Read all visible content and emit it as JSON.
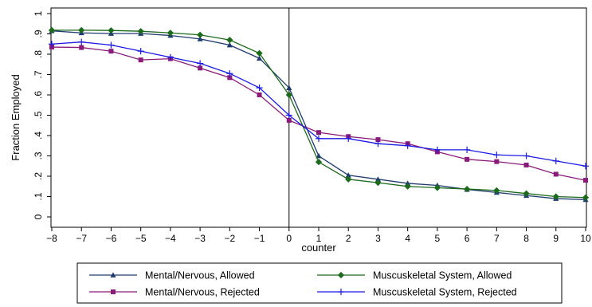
{
  "chart_data": {
    "type": "line",
    "xlabel": "counter",
    "ylabel": "Fraction Employed",
    "xlim": [
      -8,
      10
    ],
    "ylim": [
      0,
      1
    ],
    "x": [
      -8,
      -7,
      -6,
      -5,
      -4,
      -3,
      -2,
      -1,
      0,
      1,
      2,
      3,
      4,
      5,
      6,
      7,
      8,
      9,
      10
    ],
    "x_tick_labels": [
      "−8",
      "−7",
      "−6",
      "−5",
      "−4",
      "−3",
      "−2",
      "−1",
      "0",
      "1",
      "2",
      "3",
      "4",
      "5",
      "6",
      "7",
      "8",
      "9",
      "10"
    ],
    "y_ticks": [
      0,
      0.1,
      0.2,
      0.3,
      0.4,
      0.5,
      0.6,
      0.7,
      0.8,
      0.9,
      1
    ],
    "y_tick_labels": [
      "0",
      ".1",
      ".2",
      ".3",
      ".4",
      ".5",
      ".6",
      ".7",
      ".8",
      ".9",
      "1"
    ],
    "vline_x": 0,
    "grid": false,
    "legend_position": "bottom",
    "series": [
      {
        "name": "Mental/Nervous, Allowed",
        "color": "#1f3b6e",
        "marker": "triangle",
        "values": [
          0.915,
          0.905,
          0.902,
          0.902,
          0.892,
          0.875,
          0.845,
          0.78,
          0.635,
          0.3,
          0.205,
          0.185,
          0.165,
          0.155,
          0.135,
          0.12,
          0.105,
          0.09,
          0.085
        ]
      },
      {
        "name": "Muscuskeletal System, Allowed",
        "color": "#1b6b1b",
        "marker": "diamond",
        "values": [
          0.918,
          0.918,
          0.917,
          0.913,
          0.905,
          0.895,
          0.87,
          0.805,
          0.6,
          0.27,
          0.185,
          0.168,
          0.15,
          0.143,
          0.137,
          0.13,
          0.115,
          0.1,
          0.095
        ]
      },
      {
        "name": "Mental/Nervous, Rejected",
        "color": "#8b1a7a",
        "marker": "square",
        "values": [
          0.835,
          0.833,
          0.815,
          0.772,
          0.778,
          0.732,
          0.685,
          0.6,
          0.475,
          0.415,
          0.395,
          0.38,
          0.36,
          0.32,
          0.283,
          0.272,
          0.255,
          0.21,
          0.18
        ]
      },
      {
        "name": "Muscuskeletal System, Rejected",
        "color": "#1a1ae6",
        "marker": "plus",
        "values": [
          0.85,
          0.86,
          0.845,
          0.815,
          0.785,
          0.755,
          0.705,
          0.635,
          0.5,
          0.385,
          0.385,
          0.36,
          0.35,
          0.33,
          0.33,
          0.305,
          0.3,
          0.275,
          0.25
        ]
      }
    ],
    "legend_order": [
      0,
      1,
      2,
      3
    ]
  }
}
